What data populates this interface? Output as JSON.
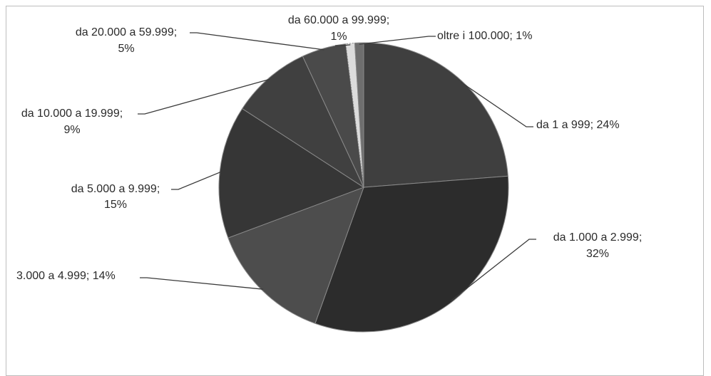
{
  "chart_data": {
    "type": "pie",
    "title": "",
    "series": [
      {
        "categories": [
          "da 1 a 999",
          "da 1.000 a 2.999",
          "3.000 a 4.999",
          "da 5.000 a 9.999",
          "da 10.000 a 19.999",
          "da 20.000 a 59.999",
          "da 60.000 a 99.999",
          "oltre i 100.000"
        ],
        "values": [
          24,
          32,
          14,
          15,
          9,
          5,
          1,
          1
        ],
        "unit": "%"
      }
    ],
    "data_labels": [
      {
        "line1": "da 1 a 999; 24%",
        "line2": ""
      },
      {
        "line1": "da 1.000 a 2.999;",
        "line2": "32%"
      },
      {
        "line1": "3.000 a 4.999; 14%",
        "line2": ""
      },
      {
        "line1": "da 5.000 a 9.999;",
        "line2": "15%"
      },
      {
        "line1": "da 10.000 a 19.999;",
        "line2": "9%"
      },
      {
        "line1": "da 20.000 a 59.999;",
        "line2": "5%"
      },
      {
        "line1": "da 60.000 a 99.999;",
        "line2": "1%"
      },
      {
        "line1": "oltre i 100.000; 1%",
        "line2": ""
      }
    ],
    "legend": "none",
    "start_angle_deg": 0,
    "direction": "clockwise",
    "colors": [
      "#3f3f3f",
      "#2c2c2c",
      "#4d4d4d",
      "#363636",
      "#404040",
      "#4a4a4a",
      "#dcdcdc",
      "#6e6e6e"
    ]
  }
}
